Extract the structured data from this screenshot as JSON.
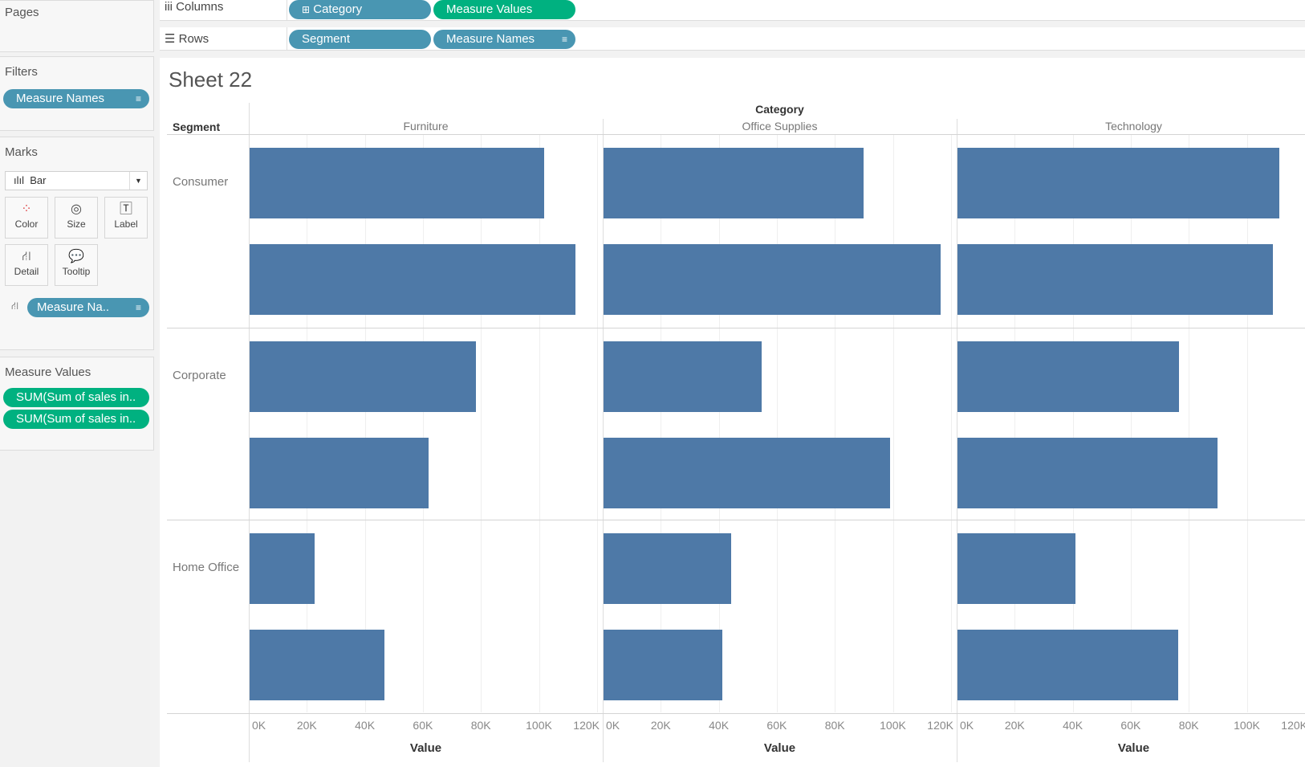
{
  "sidebar": {
    "pages_title": "Pages",
    "filters_title": "Filters",
    "filters": [
      {
        "label": "Measure Names"
      }
    ],
    "marks_title": "Marks",
    "mark_type": "Bar",
    "mark_buttons": [
      {
        "label": "Color"
      },
      {
        "label": "Size"
      },
      {
        "label": "Label"
      },
      {
        "label": "Detail"
      },
      {
        "label": "Tooltip"
      }
    ],
    "detail_pill": "Measure Na..",
    "measure_values_title": "Measure Values",
    "measure_values": [
      {
        "label": "SUM(Sum of sales in.."
      },
      {
        "label": "SUM(Sum of sales in.."
      }
    ]
  },
  "shelf": {
    "columns_label": "Columns",
    "columns": [
      {
        "label": "Category"
      },
      {
        "label": "Measure Values"
      }
    ],
    "rows_label": "Rows",
    "rows": [
      {
        "label": "Segment"
      },
      {
        "label": "Measure Names"
      }
    ]
  },
  "sheet_title": "Sheet 22",
  "chart_data": {
    "type": "bar",
    "orientation": "horizontal",
    "column_header": "Category",
    "row_header": "Segment",
    "categories": [
      "Furniture",
      "Office Supplies",
      "Technology"
    ],
    "segments": [
      "Consumer",
      "Corporate",
      "Home Office"
    ],
    "series": [
      {
        "name": "SUM(Sum of sales in.. 1",
        "values": {
          "Consumer": [
            101600,
            89500,
            111000
          ],
          "Corporate": [
            78000,
            54500,
            76300
          ],
          "Home Office": [
            22400,
            43900,
            40700
          ]
        }
      },
      {
        "name": "SUM(Sum of sales in.. 2",
        "values": {
          "Consumer": [
            112200,
            116200,
            108800
          ],
          "Corporate": [
            61700,
            98700,
            89500
          ],
          "Home Office": [
            46500,
            41000,
            76000
          ]
        }
      }
    ],
    "xlim": [
      0,
      120000
    ],
    "xticks": [
      "0K",
      "20K",
      "40K",
      "60K",
      "80K",
      "100K",
      "120K"
    ],
    "xlabel": "Value",
    "bar_color": "#4e79a7"
  }
}
